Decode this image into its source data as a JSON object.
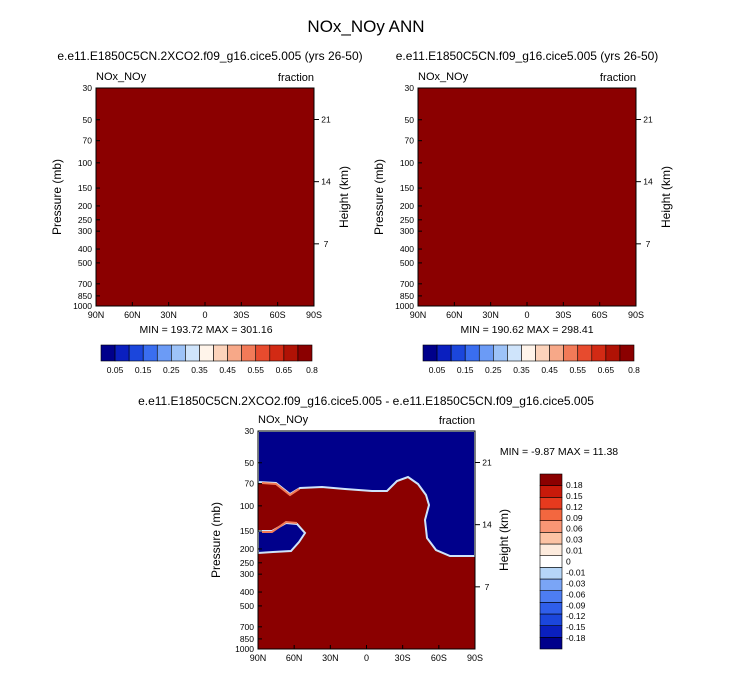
{
  "title": "NOx_NOy ANN",
  "colors": {
    "field": "#8b0000",
    "deep_blue": "#00008b"
  },
  "chart_data": [
    {
      "type": "heatmap",
      "title": "e.e11.E1850C5CN.2XCO2.f09_g16.cice5.005 (yrs 26-50)",
      "variable_label": "NOx_NOy",
      "units_label": "fraction",
      "ylabel": "Pressure (mb)",
      "ylabel_right": "Height (km)",
      "x_ticks": [
        "90N",
        "60N",
        "30N",
        "0",
        "30S",
        "60S",
        "90S"
      ],
      "y_ticks": [
        "30",
        "50",
        "70",
        "100",
        "150",
        "200",
        "250",
        "300",
        "400",
        "500",
        "700",
        "850",
        "1000"
      ],
      "y_ticks_right": [
        "21",
        "14",
        "7"
      ],
      "stats": "MIN = 193.72   MAX = 301.16",
      "ylim": [
        1000,
        30
      ],
      "colorbar": {
        "colors": [
          "#00008b",
          "#0a1fbf",
          "#1b46dc",
          "#3a6ef0",
          "#6b9bf6",
          "#9dc3f8",
          "#cfe4fb",
          "#fff4ea",
          "#fcd3bb",
          "#f7a888",
          "#f27a58",
          "#e74b2e",
          "#d22a14",
          "#b01205",
          "#8b0000"
        ],
        "labels": [
          "0.05",
          "0.15",
          "0.25",
          "0.35",
          "0.45",
          "0.55",
          "0.65",
          "0.8"
        ]
      }
    },
    {
      "type": "heatmap",
      "title": "e.e11.E1850C5CN.f09_g16.cice5.005 (yrs 26-50)",
      "variable_label": "NOx_NOy",
      "units_label": "fraction",
      "ylabel": "Pressure (mb)",
      "ylabel_right": "Height (km)",
      "x_ticks": [
        "90N",
        "60N",
        "30N",
        "0",
        "30S",
        "60S",
        "90S"
      ],
      "y_ticks": [
        "30",
        "50",
        "70",
        "100",
        "150",
        "200",
        "250",
        "300",
        "400",
        "500",
        "700",
        "850",
        "1000"
      ],
      "y_ticks_right": [
        "21",
        "14",
        "7"
      ],
      "stats": "MIN = 190.62   MAX = 298.41",
      "ylim": [
        1000,
        30
      ],
      "colorbar": {
        "colors": [
          "#00008b",
          "#0a1fbf",
          "#1b46dc",
          "#3a6ef0",
          "#6b9bf6",
          "#9dc3f8",
          "#cfe4fb",
          "#fff4ea",
          "#fcd3bb",
          "#f7a888",
          "#f27a58",
          "#e74b2e",
          "#d22a14",
          "#b01205",
          "#8b0000"
        ],
        "labels": [
          "0.05",
          "0.15",
          "0.25",
          "0.35",
          "0.45",
          "0.55",
          "0.65",
          "0.8"
        ]
      }
    },
    {
      "type": "heatmap",
      "title": "e.e11.E1850C5CN.2XCO2.f09_g16.cice5.005 - e.e11.E1850C5CN.f09_g16.cice5.005",
      "variable_label": "NOx_NOy",
      "units_label": "fraction",
      "ylabel": "Pressure (mb)",
      "ylabel_right": "Height (km)",
      "x_ticks": [
        "90N",
        "60N",
        "30N",
        "0",
        "30S",
        "60S",
        "90S"
      ],
      "y_ticks": [
        "30",
        "50",
        "70",
        "100",
        "150",
        "200",
        "250",
        "300",
        "400",
        "500",
        "700",
        "850",
        "1000"
      ],
      "y_ticks_right": [
        "21",
        "14",
        "7"
      ],
      "stats": "MIN =  -9.87   MAX =  11.38",
      "ylim": [
        1000,
        30
      ],
      "colorbar": {
        "colors": [
          "#00008b",
          "#0a1fbf",
          "#1b46dc",
          "#2f5eea",
          "#4d7df2",
          "#7aa5f6",
          "#b6d6f8",
          "#ffffff",
          "#fdebdd",
          "#fcc3a4",
          "#f99675",
          "#f3673f",
          "#e63a1e",
          "#c81a0a",
          "#8b0000"
        ],
        "labels": [
          "0.18",
          "0.15",
          "0.12",
          "0.09",
          "0.06",
          "0.03",
          "0.01",
          "0",
          "-0.01",
          "-0.03",
          "-0.06",
          "-0.09",
          "-0.12",
          "-0.15",
          "-0.18"
        ]
      }
    }
  ]
}
